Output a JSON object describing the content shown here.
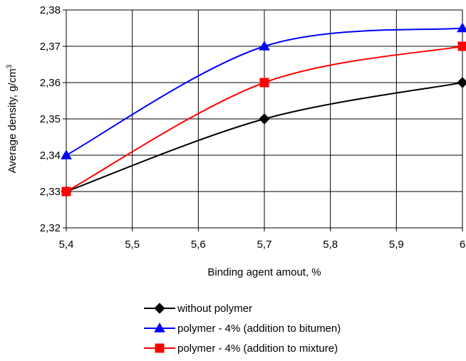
{
  "chart_data": {
    "type": "line",
    "title": "",
    "xlabel": "Binding agent amout, %",
    "ylabel_main": "Average density, g/cm",
    "ylabel_sup": "3",
    "x_ticks": [
      5.4,
      5.5,
      5.6,
      5.7,
      5.8,
      5.9,
      6.0
    ],
    "x_tick_labels": [
      "5,4",
      "5,5",
      "5,6",
      "5,7",
      "5,8",
      "5,9",
      "6"
    ],
    "y_ticks": [
      2.32,
      2.33,
      2.34,
      2.35,
      2.36,
      2.37,
      2.38
    ],
    "y_tick_labels": [
      "2,32",
      "2,33",
      "2,34",
      "2,35",
      "2,36",
      "2,37",
      "2,38"
    ],
    "xlim": [
      5.4,
      6.0
    ],
    "ylim": [
      2.32,
      2.38
    ],
    "grid": true,
    "legend_position": "bottom",
    "series": [
      {
        "name": "without polymer",
        "color": "#000000",
        "marker": "diamond",
        "points": [
          [
            5.4,
            2.33
          ],
          [
            5.7,
            2.35
          ],
          [
            6.0,
            2.36
          ]
        ]
      },
      {
        "name": "polymer - 4% (addition to bitumen)",
        "color": "#0000FF",
        "marker": "triangle",
        "points": [
          [
            5.4,
            2.34
          ],
          [
            5.7,
            2.37
          ],
          [
            6.0,
            2.375
          ]
        ]
      },
      {
        "name": "polymer - 4% (addition to mixture)",
        "color": "#FF0000",
        "marker": "square",
        "points": [
          [
            5.4,
            2.33
          ],
          [
            5.7,
            2.36
          ],
          [
            6.0,
            2.37
          ]
        ]
      }
    ]
  }
}
